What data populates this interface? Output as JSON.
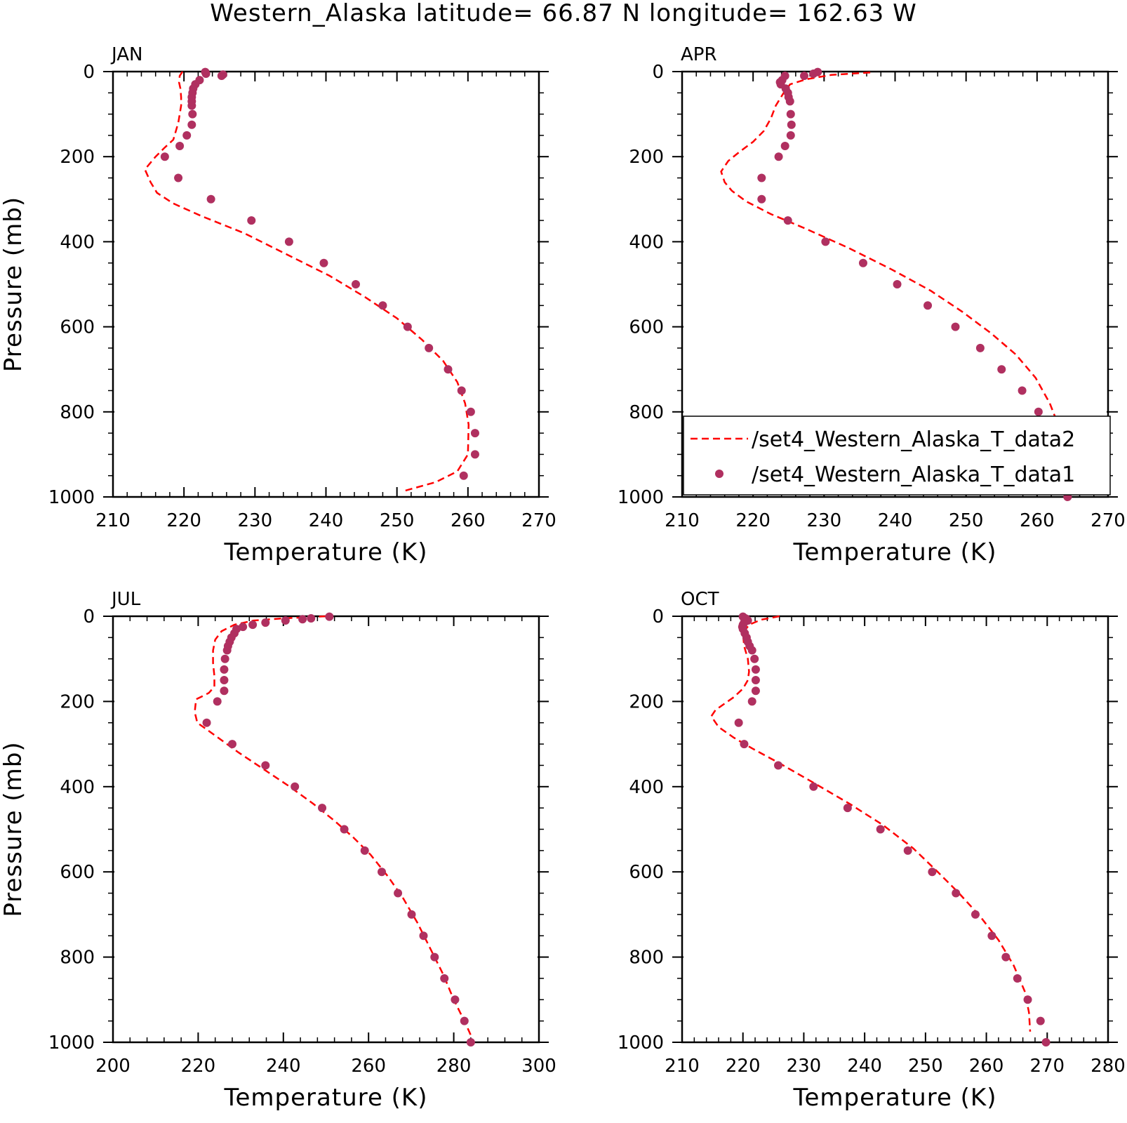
{
  "title": "Western_Alaska  latitude= 66.87 N longitude= 162.63 W",
  "colors": {
    "line": "#ff0000",
    "dots": "#b03060",
    "axes": "#000000"
  },
  "legend": {
    "panel": "APR",
    "entries": [
      {
        "label": "/set4_Western_Alaska_T_data2",
        "marker": "dashed-line"
      },
      {
        "label": "/set4_Western_Alaska_T_data1",
        "marker": "dot"
      }
    ]
  },
  "chart_data": [
    {
      "type": "line",
      "panel": "JAN",
      "xlabel": "Temperature (K)",
      "ylabel": "Pressure (mb)",
      "xlim": [
        210,
        270
      ],
      "ylim": [
        1000,
        0
      ],
      "xticks": [
        210,
        220,
        230,
        240,
        250,
        260,
        270
      ],
      "yticks": [
        0,
        200,
        400,
        600,
        800,
        1000
      ],
      "series": [
        {
          "name": "/set4_Western_Alaska_T_data2",
          "style": "dashed-line",
          "x": [
            219.8,
            219.4,
            219.3,
            219.5,
            219.6,
            219.6,
            219.2,
            218.5,
            217.2,
            216.0,
            214.5,
            215.3,
            216.2,
            218.5,
            222.5,
            228.5,
            234.5,
            240.5,
            245.5,
            250.0,
            253.5,
            256.5,
            258.5,
            259.6,
            260.1,
            260.0,
            258.5,
            255.5,
            251.2
          ],
          "y": [
            0,
            10,
            25,
            40,
            60,
            80,
            120,
            160,
            180,
            200,
            230,
            260,
            285,
            310,
            340,
            380,
            430,
            480,
            530,
            580,
            630,
            680,
            730,
            780,
            830,
            900,
            940,
            965,
            985
          ]
        },
        {
          "name": "/set4_Western_Alaska_T_data1",
          "style": "dot",
          "x": [
            223.0,
            223.1,
            225.5,
            225.3,
            222.2,
            221.6,
            221.3,
            221.2,
            221.1,
            221.1,
            221.1,
            221.2,
            221.1,
            220.4,
            219.4,
            217.3,
            219.2,
            223.8,
            229.5,
            234.8,
            239.7,
            244.2,
            248.0,
            251.5,
            254.5,
            257.2,
            259.1,
            260.4,
            261.0,
            261.0,
            259.4
          ],
          "y": [
            1,
            5,
            7,
            10,
            20,
            30,
            40,
            50,
            60,
            70,
            80,
            100,
            125,
            150,
            175,
            200,
            250,
            300,
            350,
            400,
            450,
            500,
            550,
            600,
            650,
            700,
            750,
            800,
            850,
            900,
            950
          ]
        }
      ]
    },
    {
      "type": "line",
      "panel": "APR",
      "xlabel": "Temperature (K)",
      "ylabel": "",
      "xlim": [
        210,
        270
      ],
      "ylim": [
        1000,
        0
      ],
      "xticks": [
        210,
        220,
        230,
        240,
        250,
        260,
        270
      ],
      "yticks": [
        0,
        200,
        400,
        600,
        800,
        1000
      ],
      "series": [
        {
          "name": "/set4_Western_Alaska_T_data2",
          "style": "dashed-line",
          "x": [
            236.5,
            231.0,
            227.5,
            225.2,
            224.3,
            223.2,
            222.5,
            221.5,
            220.0,
            218.0,
            216.5,
            215.5,
            216.0,
            217.0,
            219.0,
            222.5,
            227.5,
            233.5,
            239.5,
            245.0,
            249.5,
            253.5,
            257.0,
            259.8,
            261.8,
            263.2,
            264.2,
            264.4,
            263.8
          ],
          "y": [
            2,
            8,
            18,
            30,
            50,
            80,
            110,
            140,
            165,
            190,
            210,
            235,
            260,
            280,
            305,
            335,
            370,
            415,
            465,
            515,
            565,
            615,
            665,
            720,
            780,
            840,
            900,
            950,
            990
          ]
        },
        {
          "name": "/set4_Western_Alaska_T_data1",
          "style": "dot",
          "x": [
            229.1,
            228.5,
            227.2,
            224.5,
            224.1,
            223.8,
            223.9,
            224.6,
            224.9,
            225.0,
            225.2,
            225.3,
            225.4,
            225.3,
            224.5,
            223.6,
            221.2,
            221.2,
            224.9,
            230.2,
            235.5,
            240.3,
            244.6,
            248.5,
            252.0,
            255.0,
            257.9,
            260.2,
            262.3,
            263.4,
            264.3,
            264.3
          ],
          "y": [
            1,
            5,
            10,
            10,
            20,
            25,
            30,
            40,
            50,
            60,
            70,
            100,
            125,
            150,
            175,
            200,
            250,
            300,
            350,
            400,
            450,
            500,
            550,
            600,
            650,
            700,
            750,
            800,
            850,
            900,
            950,
            1000
          ]
        }
      ]
    },
    {
      "type": "line",
      "panel": "JUL",
      "xlabel": "Temperature (K)",
      "ylabel": "Pressure (mb)",
      "xlim": [
        200,
        300
      ],
      "ylim": [
        1000,
        0
      ],
      "xticks": [
        200,
        220,
        240,
        260,
        280,
        300
      ],
      "yticks": [
        0,
        200,
        400,
        600,
        800,
        1000
      ],
      "series": [
        {
          "name": "/set4_Western_Alaska_T_data2",
          "style": "dashed-line",
          "x": [
            250.0,
            240.0,
            233.0,
            228.5,
            225.5,
            224.0,
            223.5,
            223.5,
            223.8,
            223.8,
            222.5,
            219.5,
            219.2,
            219.8,
            224.0,
            229.5,
            235.5,
            241.5,
            247.0,
            252.0,
            256.5,
            260.5,
            264.5,
            268.0,
            271.5,
            274.5,
            277.5,
            280.0,
            282.5,
            284.3
          ],
          "y": [
            0,
            5,
            10,
            20,
            35,
            55,
            80,
            110,
            140,
            165,
            180,
            195,
            225,
            250,
            280,
            320,
            360,
            400,
            440,
            480,
            520,
            560,
            610,
            660,
            720,
            780,
            840,
            900,
            950,
            990
          ]
        },
        {
          "name": "/set4_Western_Alaska_T_data1",
          "style": "dot",
          "x": [
            250.8,
            246.5,
            244.5,
            240.5,
            235.8,
            232.8,
            230.5,
            229.0,
            228.5,
            227.8,
            227.4,
            227.0,
            226.8,
            226.3,
            226.1,
            226.1,
            226.1,
            224.5,
            222.0,
            228.0,
            235.8,
            242.7,
            249.1,
            254.3,
            259.1,
            263.1,
            266.9,
            270.1,
            272.9,
            275.5,
            277.8,
            280.3,
            282.5,
            284.0
          ],
          "y": [
            1,
            5,
            7,
            10,
            15,
            20,
            25,
            30,
            40,
            50,
            60,
            70,
            80,
            100,
            125,
            150,
            175,
            200,
            250,
            300,
            350,
            400,
            450,
            500,
            550,
            600,
            650,
            700,
            750,
            800,
            850,
            900,
            950,
            1000
          ]
        }
      ]
    },
    {
      "type": "line",
      "panel": "OCT",
      "xlabel": "Temperature (K)",
      "ylabel": "",
      "xlim": [
        210,
        280
      ],
      "ylim": [
        1000,
        0
      ],
      "xticks": [
        210,
        220,
        230,
        240,
        250,
        260,
        270,
        280
      ],
      "yticks": [
        0,
        200,
        400,
        600,
        800,
        1000
      ],
      "series": [
        {
          "name": "/set4_Western_Alaska_T_data2",
          "style": "dashed-line",
          "x": [
            226.0,
            223.0,
            221.0,
            220.0,
            220.2,
            220.8,
            221.0,
            220.8,
            220.0,
            218.5,
            217.0,
            215.5,
            214.8,
            216.0,
            218.5,
            221.5,
            226.0,
            231.5,
            237.5,
            243.0,
            248.0,
            252.0,
            255.5,
            259.0,
            262.0,
            264.5,
            266.3,
            267.0,
            267.2
          ],
          "y": [
            0,
            8,
            20,
            40,
            70,
            100,
            130,
            150,
            170,
            190,
            205,
            220,
            235,
            260,
            285,
            310,
            345,
            390,
            440,
            490,
            545,
            600,
            650,
            705,
            760,
            820,
            880,
            930,
            975
          ]
        },
        {
          "name": "/set4_Western_Alaska_T_data1",
          "style": "dot",
          "x": [
            220.0,
            220.4,
            220.6,
            220.8,
            220.2,
            220.0,
            219.9,
            220.0,
            220.3,
            220.6,
            220.8,
            221.1,
            221.5,
            221.9,
            222.1,
            222.1,
            222.1,
            221.5,
            219.3,
            220.2,
            225.8,
            231.6,
            237.2,
            242.6,
            247.1,
            251.1,
            255.0,
            258.2,
            260.9,
            263.2,
            265.1,
            266.8,
            268.9,
            269.8
          ],
          "y": [
            1,
            5,
            7,
            10,
            15,
            20,
            25,
            30,
            40,
            50,
            60,
            70,
            80,
            100,
            125,
            150,
            175,
            200,
            250,
            300,
            350,
            400,
            450,
            500,
            550,
            600,
            650,
            700,
            750,
            800,
            850,
            900,
            950,
            1000
          ]
        }
      ]
    }
  ]
}
